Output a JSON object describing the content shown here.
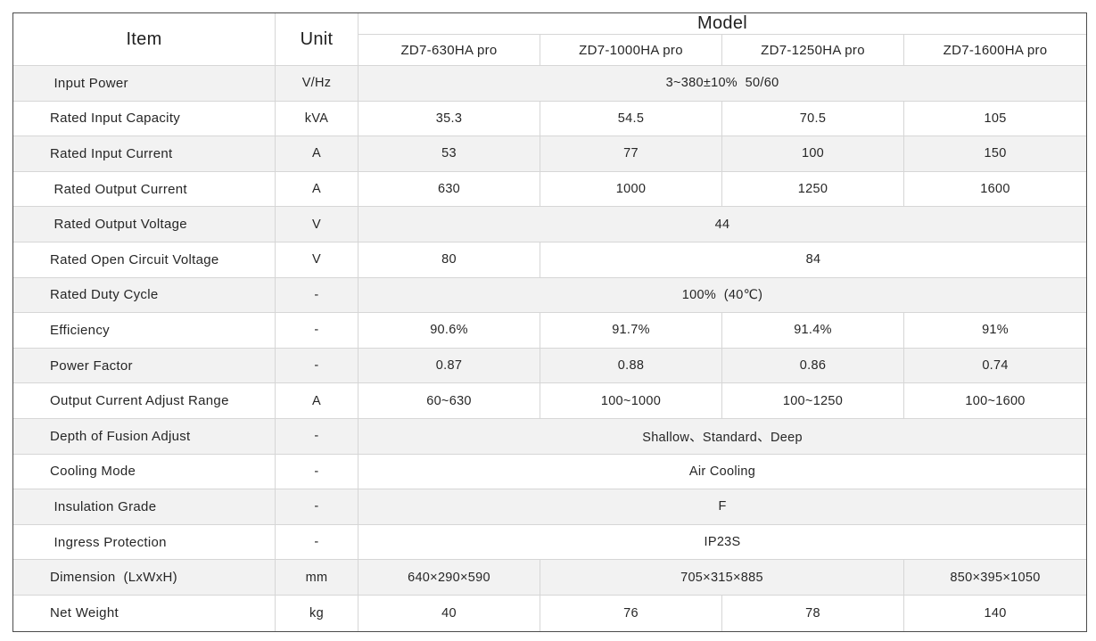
{
  "table": {
    "header": {
      "item": "Item",
      "unit": "Unit",
      "model": "Model",
      "models": [
        "ZD7-630HA pro",
        "ZD7-1000HA pro",
        "ZD7-1250HA pro",
        "ZD7-1600HA pro"
      ]
    },
    "rows": [
      {
        "item": " Input Power",
        "unit": "V/Hz",
        "cells": [
          {
            "v": "3~380±10%  50/60",
            "span": 4
          }
        ]
      },
      {
        "item": "Rated Input Capacity",
        "unit": "kVA",
        "cells": [
          {
            "v": "35.3",
            "span": 1
          },
          {
            "v": "54.5",
            "span": 1
          },
          {
            "v": "70.5",
            "span": 1
          },
          {
            "v": "105",
            "span": 1
          }
        ]
      },
      {
        "item": "Rated Input Current",
        "unit": "A",
        "cells": [
          {
            "v": "53",
            "span": 1
          },
          {
            "v": "77",
            "span": 1
          },
          {
            "v": "100",
            "span": 1
          },
          {
            "v": "150",
            "span": 1
          }
        ]
      },
      {
        "item": " Rated Output Current",
        "unit": "A",
        "cells": [
          {
            "v": "630",
            "span": 1
          },
          {
            "v": "1000",
            "span": 1
          },
          {
            "v": "1250",
            "span": 1
          },
          {
            "v": "1600",
            "span": 1
          }
        ]
      },
      {
        "item": " Rated Output Voltage",
        "unit": "V",
        "cells": [
          {
            "v": "44",
            "span": 4
          }
        ]
      },
      {
        "item": "Rated Open Circuit Voltage",
        "unit": "V",
        "cells": [
          {
            "v": "80",
            "span": 1
          },
          {
            "v": "84",
            "span": 3
          }
        ]
      },
      {
        "item": "Rated Duty Cycle",
        "unit": "-",
        "cells": [
          {
            "v": "100%  (40℃)",
            "span": 4
          }
        ]
      },
      {
        "item": "Efficiency",
        "unit": "-",
        "cells": [
          {
            "v": "90.6%",
            "span": 1
          },
          {
            "v": "91.7%",
            "span": 1
          },
          {
            "v": "91.4%",
            "span": 1
          },
          {
            "v": "91%",
            "span": 1
          }
        ]
      },
      {
        "item": "Power Factor",
        "unit": "-",
        "cells": [
          {
            "v": "0.87",
            "span": 1
          },
          {
            "v": "0.88",
            "span": 1
          },
          {
            "v": "0.86",
            "span": 1
          },
          {
            "v": "0.74",
            "span": 1
          }
        ]
      },
      {
        "item": "Output Current Adjust Range",
        "unit": "A",
        "cells": [
          {
            "v": "60~630",
            "span": 1
          },
          {
            "v": "100~1000",
            "span": 1
          },
          {
            "v": "100~1250",
            "span": 1
          },
          {
            "v": "100~1600",
            "span": 1
          }
        ]
      },
      {
        "item": "Depth of Fusion Adjust",
        "unit": "-",
        "cells": [
          {
            "v": "Shallow、Standard、Deep",
            "span": 4
          }
        ]
      },
      {
        "item": "Cooling Mode",
        "unit": "-",
        "cells": [
          {
            "v": "Air Cooling",
            "span": 4
          }
        ]
      },
      {
        "item": " Insulation Grade",
        "unit": "-",
        "cells": [
          {
            "v": "F",
            "span": 4
          }
        ]
      },
      {
        "item": " Ingress Protection",
        "unit": "-",
        "cells": [
          {
            "v": "IP23S",
            "span": 4
          }
        ]
      },
      {
        "item": "Dimension  (LxWxH)",
        "unit": "mm",
        "cells": [
          {
            "v": "640×290×590",
            "span": 1
          },
          {
            "v": "705×315×885",
            "span": 2
          },
          {
            "v": "850×395×1050",
            "span": 1
          }
        ]
      },
      {
        "item": "Net Weight",
        "unit": "kg",
        "cells": [
          {
            "v": "40",
            "span": 1
          },
          {
            "v": "76",
            "span": 1
          },
          {
            "v": "78",
            "span": 1
          },
          {
            "v": "140",
            "span": 1
          }
        ]
      }
    ],
    "colors": {
      "row_shade": "#f2f2f2",
      "gridline": "#d6d6d6",
      "outer_border": "#4c4c4c",
      "text": "#262626"
    }
  }
}
